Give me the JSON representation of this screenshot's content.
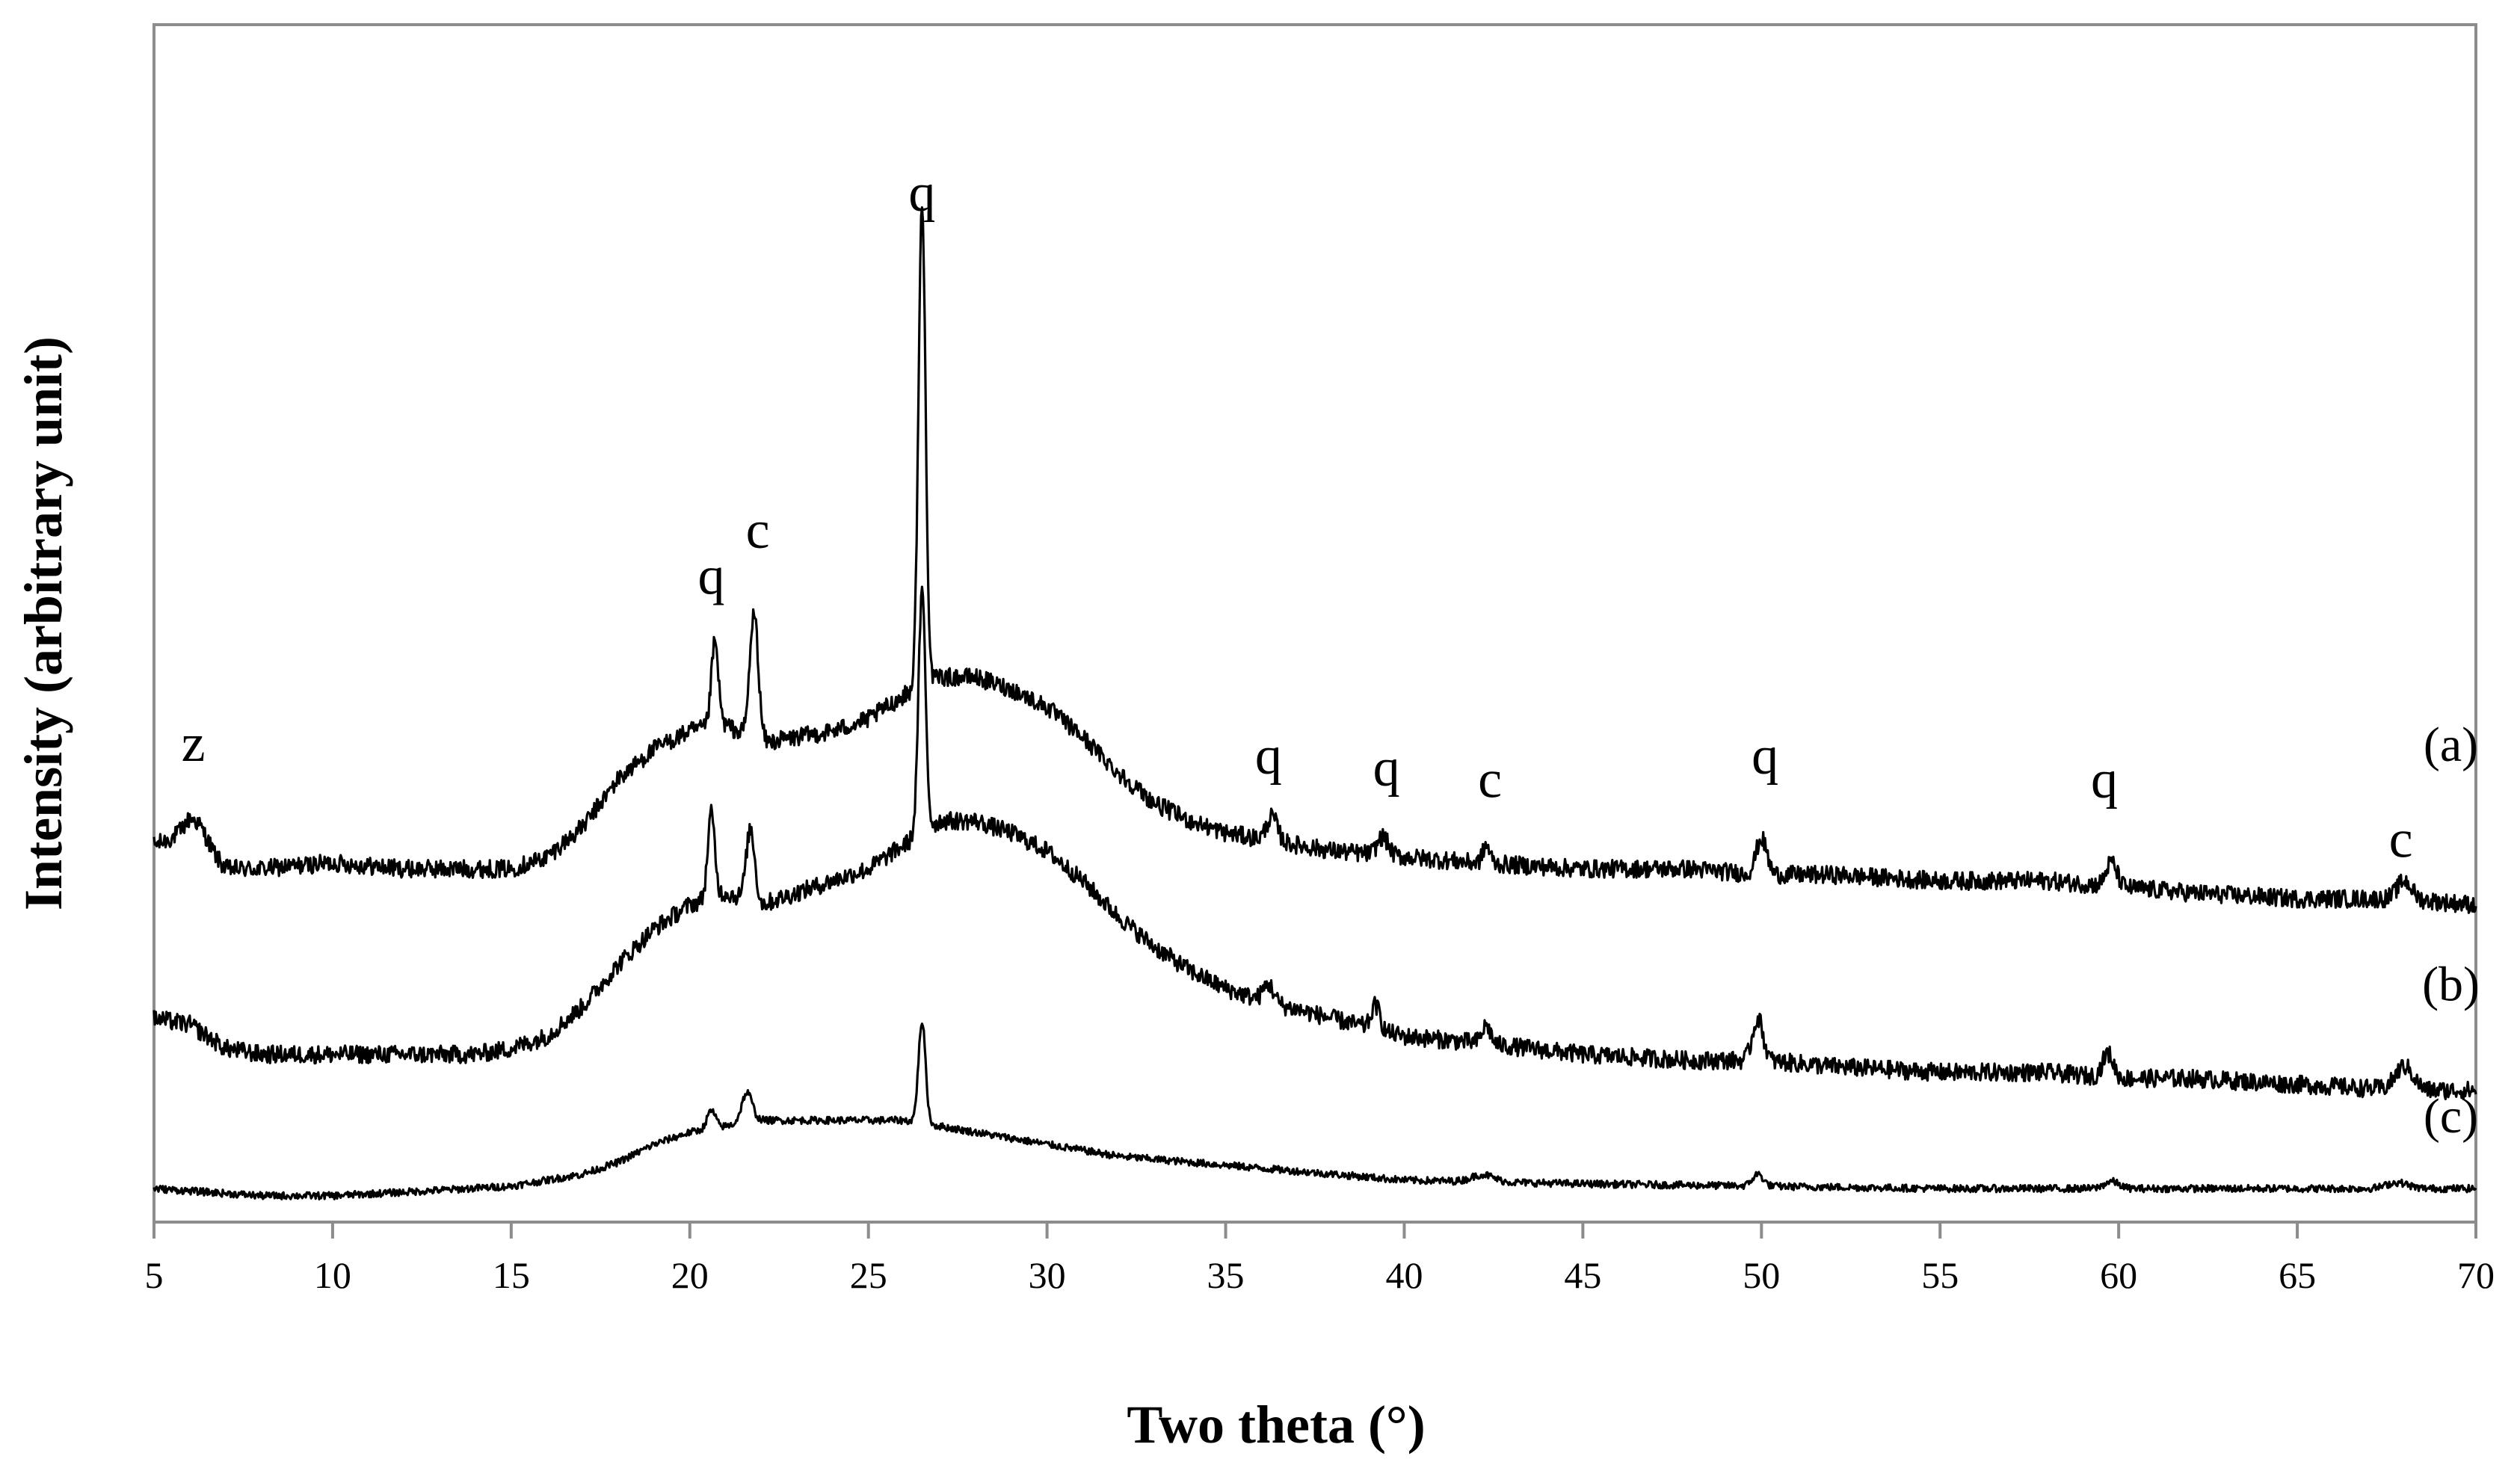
{
  "chart_data": {
    "type": "line",
    "title": "",
    "xlabel": "Two theta (°)",
    "ylabel": "Intensity (arbitrary unit)",
    "xlim": [
      5,
      70
    ],
    "ylim": [
      0,
      100
    ],
    "xticks": [
      5,
      10,
      15,
      20,
      25,
      30,
      35,
      40,
      45,
      50,
      55,
      60,
      65,
      70
    ],
    "grid": false,
    "legend": "none",
    "yticks_shown": false,
    "series": [
      {
        "label": "(a)",
        "label_x": 69.3,
        "label_y": 38.5,
        "baseline_x": [
          5,
          6,
          7,
          8,
          10,
          12,
          14,
          15,
          16,
          17,
          18,
          19,
          20,
          21,
          22,
          23,
          24,
          25,
          26,
          27,
          28,
          29,
          30,
          31,
          32,
          33,
          34,
          35,
          36,
          38,
          40,
          42,
          45,
          48,
          50,
          52,
          55,
          58,
          60,
          62,
          65,
          68,
          70
        ],
        "baseline_y": [
          31.5,
          32.5,
          29.5,
          29.5,
          30,
          29.5,
          29.5,
          29.5,
          30.5,
          33,
          37,
          39.5,
          41,
          41.5,
          40,
          40.5,
          41,
          42,
          44,
          45.5,
          45.5,
          44.5,
          43,
          40.5,
          37.5,
          35,
          33.5,
          32.5,
          32,
          31,
          30.5,
          30,
          29.5,
          29.5,
          29,
          29,
          28.5,
          28.5,
          28,
          27.5,
          27,
          27,
          26.5
        ],
        "peaks": [
          {
            "center": 6.2,
            "height": 1.5,
            "width": 0.3
          },
          {
            "center": 20.7,
            "height": 7,
            "width": 0.1
          },
          {
            "center": 21.8,
            "height": 10.5,
            "width": 0.12
          },
          {
            "center": 26.5,
            "height": 40,
            "width": 0.1
          },
          {
            "center": 36.3,
            "height": 2,
            "width": 0.15
          },
          {
            "center": 39.4,
            "height": 1.5,
            "width": 0.15
          },
          {
            "center": 42.3,
            "height": 1.5,
            "width": 0.1
          },
          {
            "center": 50.0,
            "height": 3,
            "width": 0.15
          },
          {
            "center": 59.8,
            "height": 2,
            "width": 0.15
          },
          {
            "center": 68.0,
            "height": 1.5,
            "width": 0.2
          }
        ]
      },
      {
        "label": "(b)",
        "label_x": 69.3,
        "label_y": 18.5,
        "baseline_x": [
          5,
          6,
          7,
          8,
          10,
          12,
          14,
          15,
          16,
          17,
          18,
          19,
          20,
          21,
          22,
          23,
          24,
          25,
          26,
          27,
          28,
          29,
          30,
          31,
          32,
          33,
          34,
          35,
          36,
          38,
          40,
          42,
          45,
          48,
          50,
          52,
          55,
          58,
          60,
          62,
          65,
          68,
          70
        ],
        "baseline_y": [
          17,
          16.5,
          14.5,
          14,
          14,
          14,
          14,
          14.5,
          15.5,
          18,
          21.5,
          24.5,
          26.5,
          27.5,
          26.5,
          27.5,
          28.5,
          29.5,
          31.5,
          33.5,
          33.5,
          32.5,
          31,
          28.5,
          25.5,
          23,
          21,
          19.5,
          18.5,
          17,
          15.5,
          15,
          14,
          13.5,
          13.5,
          13,
          12.5,
          12.5,
          12,
          12,
          11.5,
          11,
          11
        ],
        "peaks": [
          {
            "center": 20.6,
            "height": 7,
            "width": 0.1
          },
          {
            "center": 21.7,
            "height": 6,
            "width": 0.12
          },
          {
            "center": 26.5,
            "height": 20,
            "width": 0.1
          },
          {
            "center": 36.2,
            "height": 1.5,
            "width": 0.15
          },
          {
            "center": 39.2,
            "height": 2,
            "width": 0.12
          },
          {
            "center": 42.3,
            "height": 1.5,
            "width": 0.12
          },
          {
            "center": 49.9,
            "height": 3.5,
            "width": 0.15
          },
          {
            "center": 59.7,
            "height": 2,
            "width": 0.15
          },
          {
            "center": 68.0,
            "height": 2,
            "width": 0.25
          }
        ]
      },
      {
        "label": "(c)",
        "label_x": 69.3,
        "label_y": 7.5,
        "baseline_x": [
          5,
          8,
          10,
          12,
          15,
          17,
          18,
          19,
          20,
          21,
          22,
          23,
          24,
          25,
          26,
          27,
          28,
          30,
          32,
          34,
          36,
          38,
          40,
          45,
          50,
          55,
          60,
          65,
          70
        ],
        "baseline_y": [
          2.8,
          2.2,
          2.2,
          2.5,
          3,
          4,
          5,
          6.5,
          7.5,
          8,
          8.5,
          8.5,
          8.5,
          8.5,
          8.5,
          8,
          7.5,
          6.5,
          5.5,
          5,
          4.5,
          4,
          3.5,
          3.2,
          3,
          2.8,
          2.8,
          2.8,
          2.8
        ],
        "peaks": [
          {
            "center": 20.6,
            "height": 1.5,
            "width": 0.12
          },
          {
            "center": 21.6,
            "height": 2.5,
            "width": 0.15
          },
          {
            "center": 26.5,
            "height": 8.5,
            "width": 0.1
          },
          {
            "center": 42.2,
            "height": 0.6,
            "width": 0.3
          },
          {
            "center": 49.9,
            "height": 1,
            "width": 0.15
          },
          {
            "center": 59.8,
            "height": 0.6,
            "width": 0.2
          },
          {
            "center": 67.8,
            "height": 0.5,
            "width": 0.3
          }
        ]
      }
    ],
    "annotations": [
      {
        "text": "z",
        "x": 6.1,
        "y": 38.5
      },
      {
        "text": "q",
        "x": 20.6,
        "y": 52.5
      },
      {
        "text": "c",
        "x": 21.9,
        "y": 56.3
      },
      {
        "text": "q",
        "x": 26.5,
        "y": 84.5
      },
      {
        "text": "q",
        "x": 36.2,
        "y": 37.5
      },
      {
        "text": "q",
        "x": 39.5,
        "y": 36.5
      },
      {
        "text": "c",
        "x": 42.4,
        "y": 35.5
      },
      {
        "text": "q",
        "x": 50.1,
        "y": 37.5
      },
      {
        "text": "q",
        "x": 59.6,
        "y": 35.5
      },
      {
        "text": "c",
        "x": 67.9,
        "y": 30.5
      }
    ]
  }
}
